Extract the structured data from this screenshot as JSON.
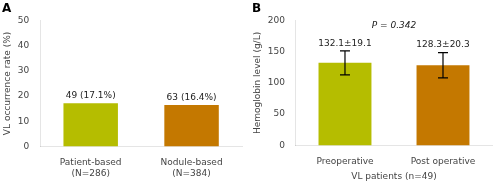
{
  "chart_data": [
    {
      "type": "bar",
      "title": "A",
      "categories": [
        "Patient-based\n(N=286)",
        "Nodule-based\n(N=384)"
      ],
      "values": [
        17.1,
        16.4
      ],
      "value_labels": [
        "49 (17.1%)",
        "63 (16.4%)"
      ],
      "colors": [
        "#b5bd00",
        "#c47800"
      ],
      "ylabel": "VL occurrence rate (%)",
      "ylim": [
        0,
        50
      ],
      "yticks": [
        0,
        10,
        20,
        30,
        40,
        50
      ],
      "grid": false,
      "legend": false
    },
    {
      "type": "bar",
      "title": "B",
      "categories": [
        "Preoperative",
        "Post operative"
      ],
      "values": [
        132.1,
        128.3
      ],
      "errors": [
        19.1,
        20.3
      ],
      "value_labels": [
        "132.1±19.1",
        "128.3±20.3"
      ],
      "colors": [
        "#b5bd00",
        "#c47800"
      ],
      "ylabel": "Hemoglobin level (g/L)",
      "xlabel": "VL patients (n=49)",
      "ylim": [
        0,
        200
      ],
      "yticks": [
        0,
        50,
        100,
        150,
        200
      ],
      "annotations": [
        "P = 0.342"
      ],
      "grid": false,
      "legend": false
    }
  ]
}
